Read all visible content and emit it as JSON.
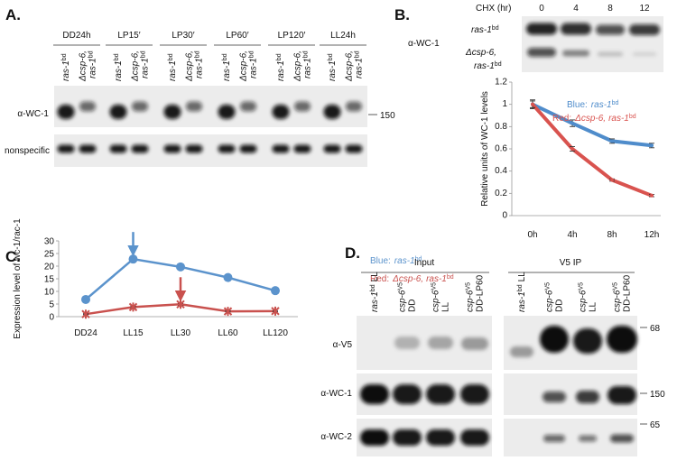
{
  "strains": [
    {
      "name": "ras-1",
      "sup": "bd"
    },
    {
      "pre": "Δcsp-6,",
      "name": "ras-1",
      "sup": "bd"
    }
  ],
  "panel_a": {
    "label": "A.",
    "conditions": [
      "DD24h",
      "LP15′",
      "LP30′",
      "LP60′",
      "LP120′",
      "LL24h"
    ],
    "rows": [
      "α-WC-1",
      "nonspecific"
    ],
    "marker": "150"
  },
  "panel_b": {
    "label": "B.",
    "chx_label": "CHX (hr)",
    "chx_times": [
      0,
      4,
      8,
      12
    ],
    "antibody": "α-WC-1"
  },
  "panel_c": {
    "label": "C."
  },
  "panel_d": {
    "label": "D.",
    "groups": [
      "Input",
      "V5 IP"
    ],
    "lanes": [
      {
        "name": "ras-1",
        "sup": "bd",
        "cond": "LL"
      },
      {
        "name": "csp-6",
        "sup": "V5",
        "cond": "DD"
      },
      {
        "name": "csp-6",
        "sup": "V5",
        "cond": "LL"
      },
      {
        "name": "csp-6",
        "sup": "V5",
        "cond": "DD-LP60"
      }
    ],
    "rows": [
      "α-V5",
      "α-WC-1",
      "α-WC-2"
    ],
    "markers": [
      "68",
      "150",
      "65"
    ]
  },
  "chart_data": [
    {
      "type": "line",
      "y_label": "Relative units of WC-1 levels",
      "categories": [
        "0h",
        "4h",
        "8h",
        "12h"
      ],
      "ylim": [
        0,
        1.2
      ],
      "yticks": [
        0,
        0.2,
        0.4,
        0.6,
        0.8,
        1,
        1.2
      ],
      "series": [
        {
          "name": "Blue:",
          "color": "#4f8ccb",
          "values": [
            1.0,
            0.83,
            0.67,
            0.63
          ],
          "errors": [
            0.04,
            0.03,
            0.02,
            0.02
          ]
        },
        {
          "name": "Red:",
          "color": "#d9534f",
          "values": [
            1.0,
            0.6,
            0.32,
            0.18
          ],
          "errors": [
            0.03,
            0.02,
            0.01,
            0.01
          ]
        }
      ]
    },
    {
      "type": "line",
      "y_label": "Expression level of wc-1/rac-1",
      "categories": [
        "DD24",
        "LL15",
        "LL30",
        "LL60",
        "LL120"
      ],
      "ylim": [
        0,
        30
      ],
      "yticks": [
        0,
        5,
        10,
        15,
        20,
        25,
        30
      ],
      "series": [
        {
          "name": "Blue:",
          "color": "#5b93cc",
          "values": [
            6.8,
            22.8,
            19.7,
            15.5,
            10.3
          ],
          "errors": [
            0.3,
            0.8,
            0.9,
            0.3,
            0.3
          ]
        },
        {
          "name": "Red:",
          "color": "#c9514e",
          "values": [
            1.0,
            3.8,
            4.9,
            2.1,
            2.2
          ],
          "errors": [
            0.2,
            0.3,
            0.4,
            0.2,
            0.2
          ]
        }
      ]
    }
  ]
}
